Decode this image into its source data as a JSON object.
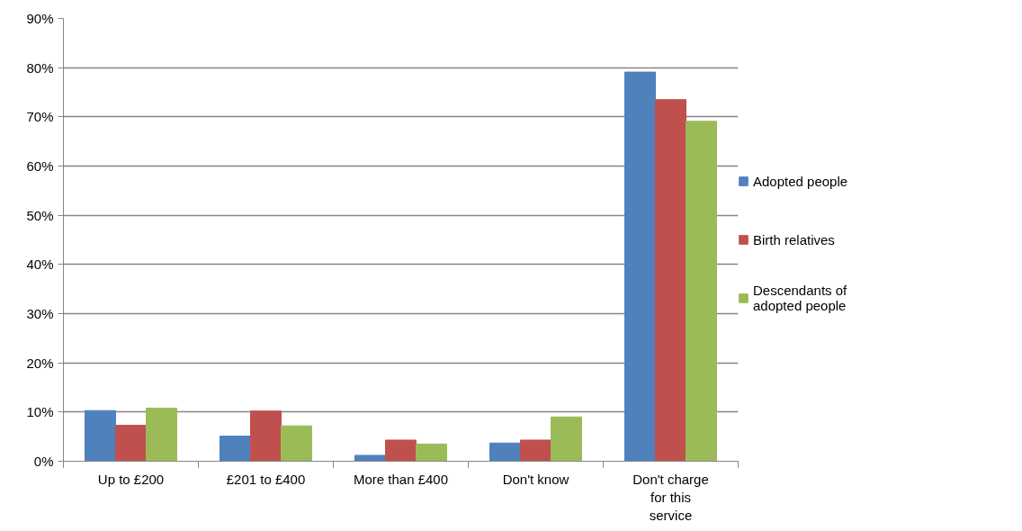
{
  "chart_data": {
    "type": "bar",
    "categories": [
      "Up to £200",
      "£201 to £400",
      "More than £400",
      "Don't know",
      "Don't charge for this service"
    ],
    "series": [
      {
        "name": "Adopted people",
        "color": "#4f81bd",
        "values": [
          10.3,
          5.1,
          1.2,
          3.7,
          79.1
        ]
      },
      {
        "name": "Birth relatives",
        "color": "#c0504d",
        "values": [
          7.3,
          10.2,
          4.3,
          4.3,
          73.5
        ]
      },
      {
        "name": "Descendants of adopted people",
        "color": "#9bbb59",
        "values": [
          10.8,
          7.2,
          3.5,
          9.0,
          69.1
        ]
      }
    ],
    "ylim": [
      0,
      90
    ],
    "yticks": [
      {
        "value": 0,
        "label": "0%"
      },
      {
        "value": 10,
        "label": "10%"
      },
      {
        "value": 20,
        "label": "20%"
      },
      {
        "value": 30,
        "label": "30%"
      },
      {
        "value": 40,
        "label": "40%"
      },
      {
        "value": 50,
        "label": "50%"
      },
      {
        "value": 60,
        "label": "60%"
      },
      {
        "value": 70,
        "label": "70%"
      },
      {
        "value": 80,
        "label": "80%"
      },
      {
        "value": 90,
        "label": "90%"
      }
    ],
    "grid": "y",
    "legend": "right"
  }
}
